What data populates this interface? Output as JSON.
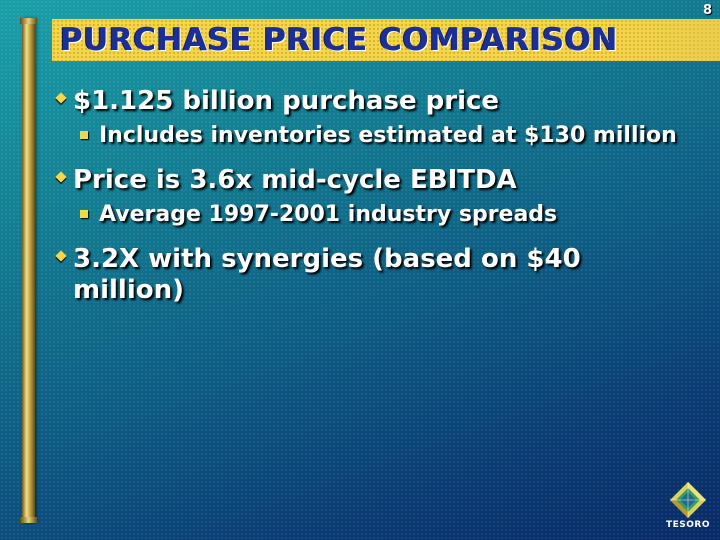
{
  "slide": {
    "page_number": "8",
    "title": "PURCHASE PRICE COMPARISON"
  },
  "bullets": [
    {
      "text": "$1.125 billion purchase price",
      "sub": "Includes inventories estimated at $130 million"
    },
    {
      "text": "Price is 3.6x mid-cycle EBITDA",
      "sub": "Average 1997-2001 industry spreads"
    },
    {
      "text": "3.2X with synergies (based on $40 million)"
    }
  ],
  "logo": {
    "name": "TESORO",
    "icon": "tesoro-logo-icon"
  },
  "colors": {
    "title_band": "#f5d64a",
    "title_text": "#1b2f96",
    "bullet_marker": "#f5d64a",
    "text": "#ffffff"
  }
}
